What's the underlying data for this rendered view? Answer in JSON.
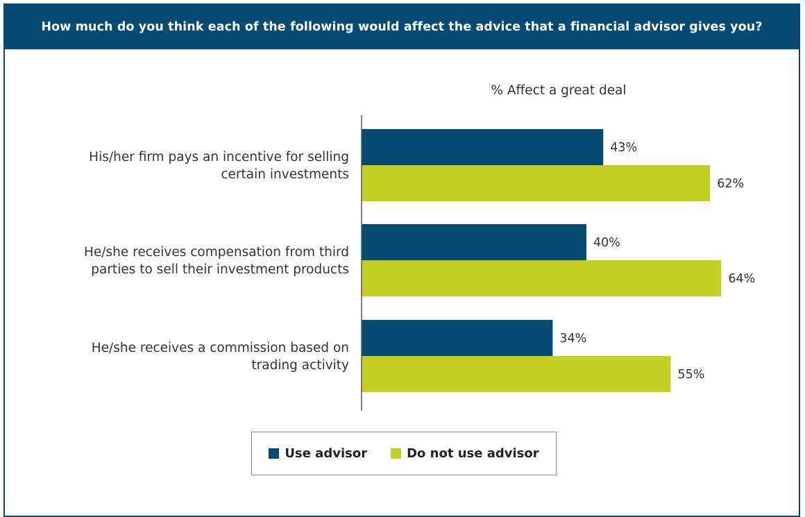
{
  "header": {
    "title": "How much do you think each of the following would affect the advice that a financial advisor gives you?"
  },
  "chart_data": {
    "type": "bar",
    "orientation": "horizontal",
    "title": "% Affect a great deal",
    "categories": [
      [
        "His/her firm pays an incentive for selling",
        "certain investments"
      ],
      [
        "He/she receives compensation from third",
        "parties to sell their investment products"
      ],
      [
        "He/she receives a commission based on",
        "trading activity"
      ]
    ],
    "series": [
      {
        "name": "Use advisor",
        "color": "#044a72",
        "values": [
          43,
          40,
          34
        ],
        "labels": [
          "43%",
          "40%",
          "34%"
        ]
      },
      {
        "name": "Do not use advisor",
        "color": "#c3d023",
        "values": [
          62,
          64,
          55
        ],
        "labels": [
          "62%",
          "64%",
          "55%"
        ]
      }
    ],
    "xlim": [
      0,
      100
    ],
    "grid": false,
    "legend_position": "bottom-center"
  }
}
